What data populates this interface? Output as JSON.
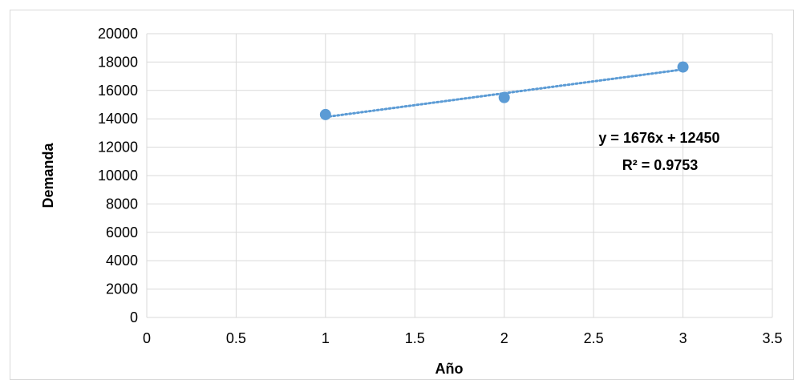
{
  "chart_data": {
    "type": "scatter",
    "title": "",
    "xlabel": "Año",
    "ylabel": "Demanda",
    "xlim": [
      0,
      3.5
    ],
    "ylim": [
      0,
      20000
    ],
    "x_ticks": [
      "0",
      "0.5",
      "1",
      "1.5",
      "2",
      "2.5",
      "3",
      "3.5"
    ],
    "y_ticks": [
      "0",
      "2000",
      "4000",
      "6000",
      "8000",
      "10000",
      "12000",
      "14000",
      "16000",
      "18000",
      "20000"
    ],
    "grid": true,
    "legend": "none",
    "series": [
      {
        "x": [
          1,
          2,
          3
        ],
        "y": [
          14300,
          15500,
          17650
        ],
        "color": "#5b9bd5"
      }
    ],
    "trendline": {
      "type": "linear",
      "slope": 1676,
      "intercept": 12450,
      "x_range": [
        1,
        3
      ],
      "color": "#5b9bd5",
      "style": "dotted",
      "equation_label": "y = 1676x + 12450",
      "r2_label": "R² = 0.9753"
    }
  }
}
